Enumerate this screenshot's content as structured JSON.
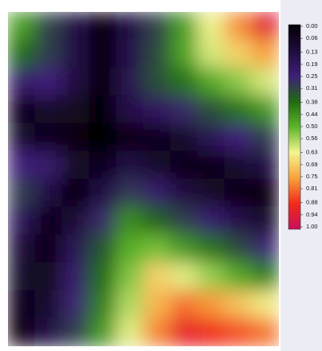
{
  "chart_data": {
    "type": "heatmap",
    "z": [
      [
        0.46,
        0.31,
        0.15,
        0,
        0.15,
        0.31,
        0.46,
        0.62,
        0.77,
        0.93
      ],
      [
        0.38,
        0.3,
        0.15,
        0,
        0.16,
        0.32,
        0.47,
        0.6,
        0.68,
        0.75
      ],
      [
        0.22,
        0.25,
        0.14,
        0,
        0.17,
        0.33,
        0.39,
        0.48,
        0.54,
        0.6
      ],
      [
        0.06,
        0.09,
        0.07,
        0,
        0.16,
        0.2,
        0.27,
        0.33,
        0.39,
        0.45
      ],
      [
        0.1,
        0.05,
        0.02,
        0,
        0.02,
        0.06,
        0.1,
        0.18,
        0.25,
        0.3
      ],
      [
        0.25,
        0.22,
        0.09,
        0.06,
        0.15,
        0.09,
        0.03,
        0.04,
        0.1,
        0.15
      ],
      [
        0.3,
        0.15,
        0,
        0.15,
        0.29,
        0.22,
        0.14,
        0.08,
        0.03,
        0.02
      ],
      [
        0.19,
        0.04,
        0.12,
        0.27,
        0.43,
        0.36,
        0.3,
        0.23,
        0.16,
        0.1
      ],
      [
        0.12,
        0.03,
        0.18,
        0.34,
        0.49,
        0.52,
        0.45,
        0.39,
        0.32,
        0.26
      ],
      [
        0.09,
        0.07,
        0.22,
        0.38,
        0.53,
        0.68,
        0.61,
        0.55,
        0.48,
        0.41
      ],
      [
        0.05,
        0.1,
        0.26,
        0.41,
        0.57,
        0.72,
        0.8,
        0.76,
        0.7,
        0.64
      ],
      [
        0.01,
        0.15,
        0.3,
        0.45,
        0.61,
        0.78,
        0.91,
        0.88,
        0.84,
        0.8
      ]
    ],
    "clim": [
      0,
      1
    ],
    "colormap": [
      "#050005",
      "#1c0c3a",
      "#3f1f7a",
      "#1f6a12",
      "#5db52a",
      "#f4f590",
      "#f7a23c",
      "#f22a1a",
      "#c8105a"
    ],
    "colorbar_ticks": [
      {
        "value": 0,
        "label": "0.00"
      },
      {
        "value": 0.06,
        "label": "0.06"
      },
      {
        "value": 0.13,
        "label": "0.13"
      },
      {
        "value": 0.19,
        "label": "0.19"
      },
      {
        "value": 0.25,
        "label": "0.25"
      },
      {
        "value": 0.31,
        "label": "0.31"
      },
      {
        "value": 0.38,
        "label": "0.38"
      },
      {
        "value": 0.44,
        "label": "0.44"
      },
      {
        "value": 0.5,
        "label": "0.50"
      },
      {
        "value": 0.56,
        "label": "0.56"
      },
      {
        "value": 0.63,
        "label": "0.63"
      },
      {
        "value": 0.69,
        "label": "0.69"
      },
      {
        "value": 0.75,
        "label": "0.75"
      },
      {
        "value": 0.81,
        "label": "0.81"
      },
      {
        "value": 0.88,
        "label": "0.88"
      },
      {
        "value": 0.94,
        "label": "0.94"
      },
      {
        "value": 1,
        "label": "1.00"
      }
    ]
  }
}
